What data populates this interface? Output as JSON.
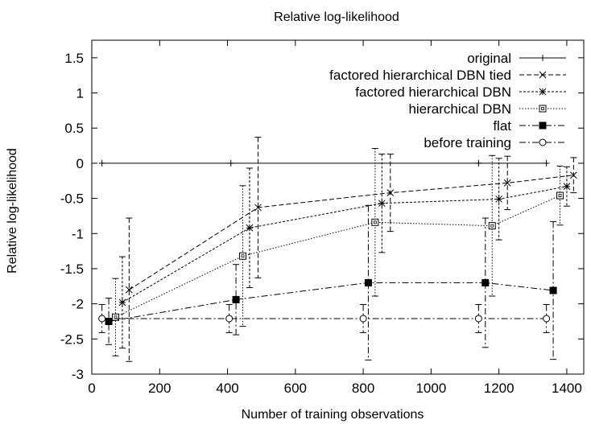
{
  "chart_data": {
    "type": "line",
    "title": "Relative log-likelihood",
    "xlabel": "Number of training observations",
    "ylabel": "Relative log-likelihood",
    "xlim": [
      0,
      1450
    ],
    "ylim": [
      -3,
      1.75
    ],
    "xticks": [
      0,
      200,
      400,
      600,
      800,
      1000,
      1200,
      1400
    ],
    "yticks": [
      -3,
      -2.5,
      -2,
      -1.5,
      -1,
      -0.5,
      0,
      0.5,
      1,
      1.5
    ],
    "xtick_labels": [
      "0",
      "200",
      "400",
      "600",
      "800",
      "1000",
      "1200",
      "1400"
    ],
    "ytick_labels": [
      "-3",
      "-2.5",
      "-2",
      "-1.5",
      "-1",
      "-0.5",
      "0",
      "0.5",
      "1",
      "1.5"
    ],
    "grid": false,
    "legend_position": "top-right",
    "series": [
      {
        "name": "original",
        "marker": "plus",
        "dash": "solid",
        "x": [
          30,
          410,
          1140,
          1340
        ],
        "y": [
          0,
          0,
          0,
          0
        ]
      },
      {
        "name": "factored hierarchical DBN tied",
        "marker": "x",
        "dash": "dashed",
        "x": [
          110,
          490,
          880,
          1225,
          1420
        ],
        "y": [
          -1.8,
          -0.63,
          -0.42,
          -0.28,
          -0.17
        ],
        "err": [
          1.02,
          1.0,
          0.55,
          0.38,
          0.25
        ]
      },
      {
        "name": "factored hierarchical DBN",
        "marker": "star",
        "dash": "dotted-dense",
        "x": [
          90,
          465,
          855,
          1200,
          1400
        ],
        "y": [
          -1.98,
          -0.92,
          -0.57,
          -0.51,
          -0.33
        ],
        "err": [
          0.65,
          0.85,
          0.7,
          0.58,
          0.28
        ]
      },
      {
        "name": "hierarchical DBN",
        "marker": "box",
        "dash": "dotted",
        "x": [
          70,
          445,
          835,
          1180,
          1380
        ],
        "y": [
          -2.19,
          -1.32,
          -0.84,
          -0.89,
          -0.46
        ],
        "err": [
          0.55,
          1.0,
          1.05,
          1.0,
          0.42
        ]
      },
      {
        "name": "flat",
        "marker": "filled-box",
        "dash": "dash-dot",
        "x": [
          50,
          425,
          815,
          1160,
          1360
        ],
        "y": [
          -2.25,
          -1.94,
          -1.7,
          -1.7,
          -1.81
        ],
        "err": [
          0.33,
          0.5,
          1.1,
          0.92,
          0.98
        ]
      },
      {
        "name": "before training",
        "marker": "circle",
        "dash": "dash-dot",
        "x": [
          30,
          405,
          800,
          1140,
          1340
        ],
        "y": [
          -2.21,
          -2.21,
          -2.21,
          -2.21,
          -2.21
        ],
        "err": [
          0.2,
          0.2,
          0.2,
          0.2,
          0.2
        ]
      }
    ]
  }
}
